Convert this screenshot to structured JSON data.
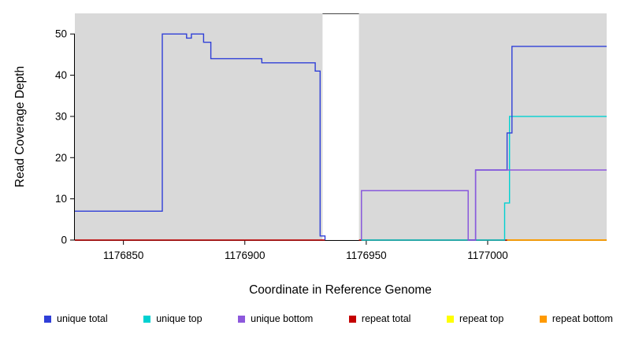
{
  "chart_data": {
    "type": "line",
    "subtype": "step-coverage",
    "title": "",
    "x_axis": {
      "label": "Coordinate in Reference Genome",
      "ticks": [
        1176850,
        1176900,
        1176950,
        1177000
      ]
    },
    "y_axis": {
      "label": "Read Coverage Depth",
      "ticks": [
        0,
        10,
        20,
        30,
        40,
        50
      ]
    },
    "xlim": [
      1176830,
      1177049
    ],
    "ylim": [
      0,
      55
    ],
    "grid": false,
    "panel_color": "#d9d9d9",
    "background_color": "#ffffff",
    "gap_regions": [
      {
        "from": 1176932,
        "to": 1176947
      }
    ],
    "legend_position": "bottom",
    "legend": [
      {
        "label": "unique total",
        "color": "#2f3fd8"
      },
      {
        "label": "unique top",
        "color": "#00d1d1"
      },
      {
        "label": "unique bottom",
        "color": "#8d58dc"
      },
      {
        "label": "repeat total",
        "color": "#c40000"
      },
      {
        "label": "repeat top",
        "color": "#ffff00"
      },
      {
        "label": "repeat bottom",
        "color": "#ff9a00"
      }
    ],
    "series": [
      {
        "name": "repeat total",
        "color": "#c40000",
        "segments": [
          [
            [
              1176830,
              0
            ],
            [
              1176933,
              0
            ]
          ],
          [
            [
              1176947,
              0
            ],
            [
              1177049,
              0
            ]
          ]
        ]
      },
      {
        "name": "repeat top",
        "color": "#ffff00",
        "segments": [
          [
            [
              1177008,
              0
            ],
            [
              1177049,
              0
            ]
          ]
        ]
      },
      {
        "name": "repeat bottom",
        "color": "#ff9a00",
        "segments": [
          [
            [
              1177008,
              0
            ],
            [
              1177049,
              0
            ]
          ]
        ]
      },
      {
        "name": "unique top",
        "color": "#00d1d1",
        "segments": [
          [
            [
              1176948,
              0
            ],
            [
              1177007,
              0
            ],
            [
              1177007,
              9
            ],
            [
              1177009,
              9
            ],
            [
              1177009,
              30
            ],
            [
              1177049,
              30
            ]
          ]
        ]
      },
      {
        "name": "unique total",
        "color": "#2f3fd8",
        "segments": [
          [
            [
              1176830,
              7
            ],
            [
              1176866,
              7
            ],
            [
              1176866,
              50
            ],
            [
              1176876,
              50
            ],
            [
              1176876,
              49
            ],
            [
              1176878,
              49
            ],
            [
              1176878,
              50
            ],
            [
              1176883,
              50
            ],
            [
              1176883,
              48
            ],
            [
              1176886,
              48
            ],
            [
              1176886,
              44
            ],
            [
              1176907,
              44
            ],
            [
              1176907,
              43
            ],
            [
              1176929,
              43
            ],
            [
              1176929,
              41
            ],
            [
              1176931,
              41
            ],
            [
              1176931,
              1
            ],
            [
              1176933,
              1
            ],
            [
              1176933,
              0
            ]
          ],
          [
            [
              1176948,
              0
            ],
            [
              1176948,
              12
            ],
            [
              1176992,
              12
            ],
            [
              1176992,
              0
            ],
            [
              1176995,
              0
            ],
            [
              1176995,
              17
            ],
            [
              1177008,
              17
            ],
            [
              1177008,
              26
            ],
            [
              1177010,
              26
            ],
            [
              1177010,
              47
            ],
            [
              1177049,
              47
            ]
          ]
        ]
      },
      {
        "name": "unique bottom",
        "color": "#8d58dc",
        "segments": [
          [
            [
              1176948,
              0
            ],
            [
              1176948,
              12
            ],
            [
              1176992,
              12
            ],
            [
              1176992,
              0
            ],
            [
              1176995,
              0
            ],
            [
              1176995,
              17
            ],
            [
              1177049,
              17
            ]
          ]
        ]
      }
    ]
  }
}
